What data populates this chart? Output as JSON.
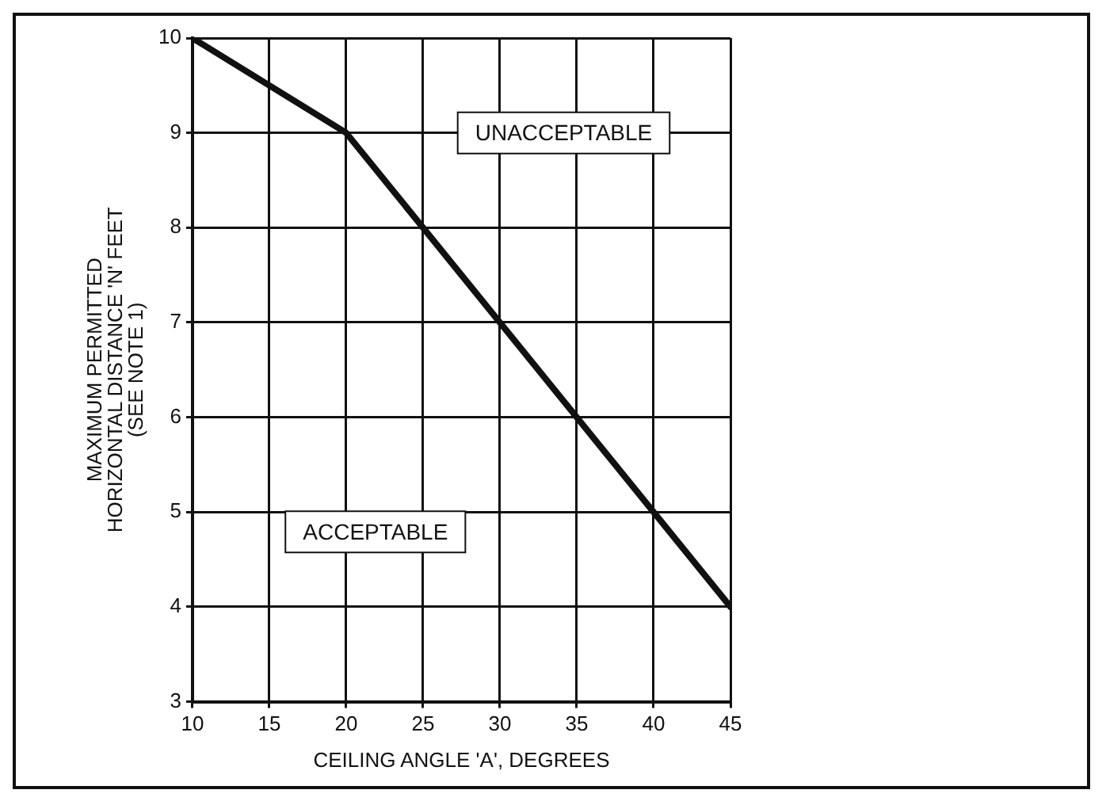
{
  "chart_data": {
    "type": "line",
    "xlabel": "CEILING ANGLE 'A', DEGREES",
    "ylabel": "MAXIMUM PERMITTED\nHORIZONTAL DISTANCE 'N' FEET\n(SEE NOTE 1)",
    "x": [
      10,
      20,
      45
    ],
    "series": [
      {
        "color": "#111111",
        "values": [
          10,
          9,
          4
        ]
      }
    ],
    "xlim": [
      10,
      45
    ],
    "xticks": [
      10,
      15,
      20,
      25,
      30,
      35,
      40,
      45
    ],
    "ylim": [
      3,
      10
    ],
    "yticks": [
      3,
      4,
      5,
      6,
      7,
      8,
      9,
      10
    ],
    "grid": true,
    "legend": false,
    "marker": "none",
    "line_style": "solid",
    "annotations": [
      "UNACCEPTABLE",
      "ACCEPTABLE"
    ]
  }
}
